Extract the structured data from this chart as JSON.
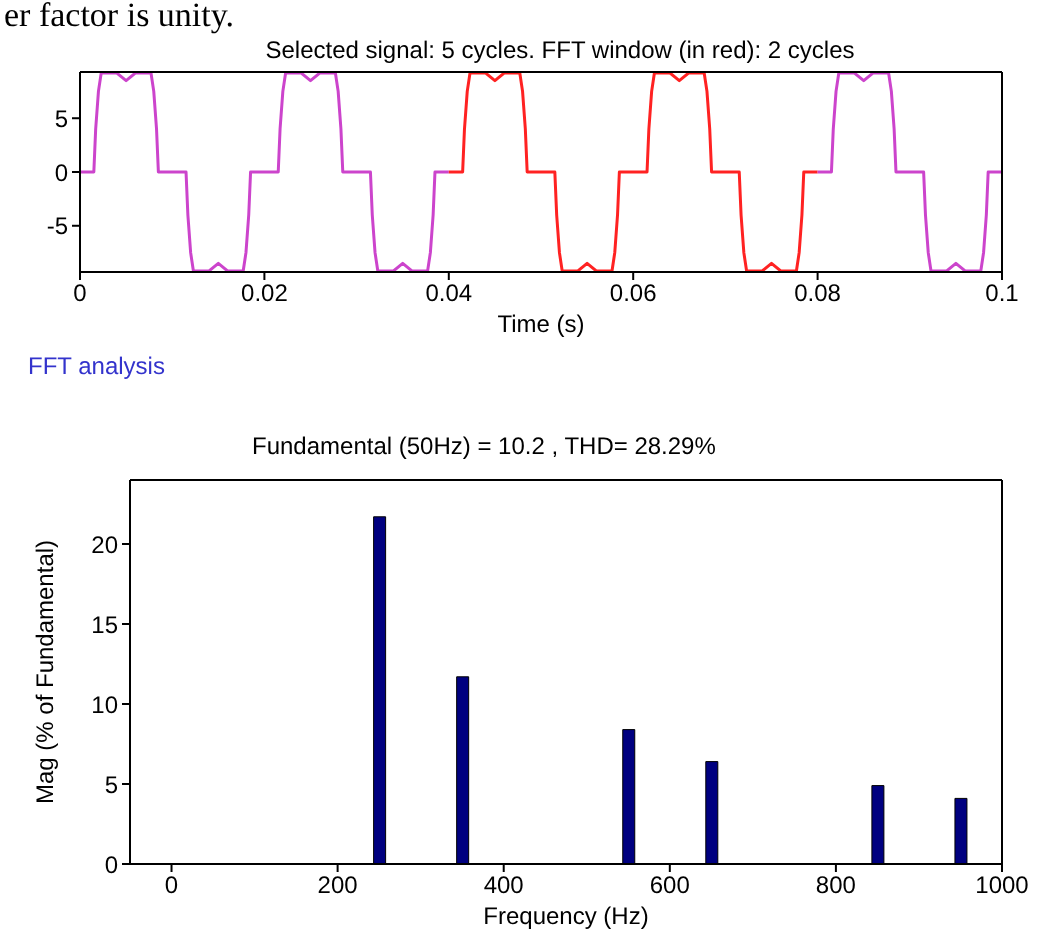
{
  "chart_data": [
    {
      "type": "line",
      "title": "Selected signal: 5 cycles. FFT window (in red): 2 cycles",
      "xlabel": "Time (s)",
      "annotations": [
        "er factor is unity."
      ],
      "xlim": [
        0,
        0.1
      ],
      "xticks": [
        0,
        0.02,
        0.04,
        0.06,
        0.08,
        0.1
      ],
      "ylim": [
        -9.3,
        9.3
      ],
      "yticks": [
        -5,
        0,
        5
      ],
      "series": [
        {
          "color": "#cc44cc",
          "x": [
            0,
            0.0015,
            0.0017,
            0.002,
            0.0023,
            0.004,
            0.005,
            0.006,
            0.0077,
            0.008,
            0.0083,
            0.0085,
            0.0115,
            0.0117,
            0.012,
            0.0123,
            0.014,
            0.015,
            0.016,
            0.0177,
            0.018,
            0.0183,
            0.0185,
            0.0215,
            0.0217,
            0.022,
            0.0223,
            0.024,
            0.025,
            0.026,
            0.0277,
            0.028,
            0.0283,
            0.0285,
            0.0315,
            0.0317,
            0.032,
            0.0323,
            0.034,
            0.035,
            0.036,
            0.0377,
            0.038,
            0.0383,
            0.0385,
            0.04
          ],
          "values": [
            0,
            0,
            4,
            7.5,
            9.2,
            9.2,
            8.5,
            9.2,
            9.2,
            7.5,
            4,
            0,
            0,
            -4,
            -7.5,
            -9.2,
            -9.2,
            -8.5,
            -9.2,
            -9.2,
            -7.5,
            -4,
            0,
            0,
            4,
            7.5,
            9.2,
            9.2,
            8.5,
            9.2,
            9.2,
            7.5,
            4,
            0,
            0,
            -4,
            -7.5,
            -9.2,
            -9.2,
            -8.5,
            -9.2,
            -9.2,
            -7.5,
            -4,
            0,
            0
          ]
        },
        {
          "color": "#ff2222",
          "x": [
            0.04,
            0.0415,
            0.0417,
            0.042,
            0.0423,
            0.044,
            0.045,
            0.046,
            0.0477,
            0.048,
            0.0483,
            0.0485,
            0.0515,
            0.0517,
            0.052,
            0.0523,
            0.054,
            0.055,
            0.056,
            0.0577,
            0.058,
            0.0583,
            0.0585,
            0.0615,
            0.0617,
            0.062,
            0.0623,
            0.064,
            0.065,
            0.066,
            0.0677,
            0.068,
            0.0683,
            0.0685,
            0.0715,
            0.0717,
            0.072,
            0.0723,
            0.074,
            0.075,
            0.076,
            0.0777,
            0.078,
            0.0783,
            0.0785,
            0.08
          ],
          "values": [
            0,
            0,
            4,
            7.5,
            9.2,
            9.2,
            8.5,
            9.2,
            9.2,
            7.5,
            4,
            0,
            0,
            -4,
            -7.5,
            -9.2,
            -9.2,
            -8.5,
            -9.2,
            -9.2,
            -7.5,
            -4,
            0,
            0,
            4,
            7.5,
            9.2,
            9.2,
            8.5,
            9.2,
            9.2,
            7.5,
            4,
            0,
            0,
            -4,
            -7.5,
            -9.2,
            -9.2,
            -8.5,
            -9.2,
            -9.2,
            -7.5,
            -4,
            0,
            0
          ]
        },
        {
          "color": "#cc44cc",
          "x": [
            0.08,
            0.0815,
            0.0817,
            0.082,
            0.0823,
            0.084,
            0.085,
            0.086,
            0.0877,
            0.088,
            0.0883,
            0.0885,
            0.0915,
            0.0917,
            0.092,
            0.0923,
            0.094,
            0.095,
            0.096,
            0.0977,
            0.098,
            0.0983,
            0.0985,
            0.1
          ],
          "values": [
            0,
            0,
            4,
            7.5,
            9.2,
            9.2,
            8.5,
            9.2,
            9.2,
            7.5,
            4,
            0,
            0,
            -4,
            -7.5,
            -9.2,
            -9.2,
            -8.5,
            -9.2,
            -9.2,
            -7.5,
            -4,
            0,
            0
          ]
        }
      ]
    },
    {
      "type": "bar",
      "title": "FFT analysis",
      "xlabel": "Frequency (Hz)",
      "ylabel": "Mag (% of Fundamental)",
      "annotations": [
        "Fundamental (50Hz) = 10.2 , THD= 28.29%"
      ],
      "xlim": [
        -50,
        1000
      ],
      "xticks": [
        0,
        200,
        400,
        600,
        800,
        1000
      ],
      "ylim": [
        0,
        24
      ],
      "yticks": [
        0,
        5,
        10,
        15,
        20
      ],
      "x": [
        250,
        350,
        550,
        650,
        850,
        950
      ],
      "series": [
        {
          "color": "#000080",
          "values": [
            21.7,
            11.7,
            8.4,
            6.4,
            4.9,
            4.1
          ]
        }
      ]
    }
  ]
}
